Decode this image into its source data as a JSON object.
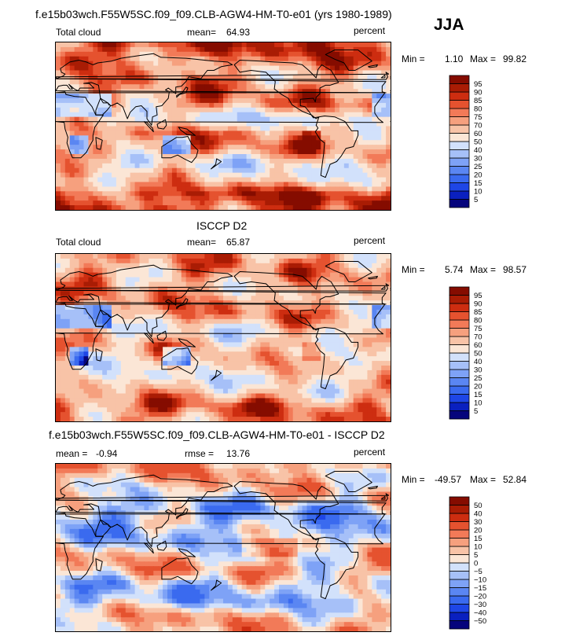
{
  "figure": {
    "title": "f.e15b03wch.F55W5SC.f09_f09.CLB-AGW4-HM-T0-e01 (yrs 1980-1989)",
    "season": "JJA"
  },
  "chart_data": [
    {
      "type": "heatmap",
      "panel": "model",
      "variable": "Total cloud",
      "mean_label": "mean=",
      "mean": "64.93",
      "units": "percent",
      "min_label": "Min =",
      "min": "1.10",
      "max_label": "Max =",
      "max": "99.82",
      "levels": [
        5,
        10,
        15,
        20,
        25,
        30,
        40,
        50,
        60,
        70,
        75,
        80,
        85,
        90,
        95
      ],
      "level_labels": [
        "5",
        "10",
        "15",
        "20",
        "25",
        "30",
        "40",
        "50",
        "60",
        "70",
        "75",
        "80",
        "85",
        "90",
        "95"
      ],
      "band_means": [
        88,
        80,
        70,
        72,
        76,
        50,
        74,
        74,
        52,
        60,
        88,
        84
      ]
    },
    {
      "type": "heatmap",
      "panel": "observations",
      "title": "ISCCP D2",
      "variable": "Total cloud",
      "mean_label": "mean=",
      "mean": "65.87",
      "units": "percent",
      "min_label": "Min =",
      "min": "5.74",
      "max_label": "Max =",
      "max": "98.57",
      "levels": [
        5,
        10,
        15,
        20,
        25,
        30,
        40,
        50,
        60,
        70,
        75,
        80,
        85,
        90,
        95
      ],
      "level_labels": [
        "5",
        "10",
        "15",
        "20",
        "25",
        "30",
        "40",
        "50",
        "60",
        "70",
        "75",
        "80",
        "85",
        "90",
        "95"
      ],
      "band_means": [
        70,
        72,
        68,
        70,
        72,
        56,
        66,
        62,
        56,
        62,
        80,
        74
      ]
    },
    {
      "type": "heatmap",
      "panel": "difference",
      "title": "f.e15b03wch.F55W5SC.f09_f09.CLB-AGW4-HM-T0-e01 - ISCCP D2",
      "mean_label": "mean =",
      "mean": "-0.94",
      "rmse_label": "rmse =",
      "rmse": "13.76",
      "units": "percent",
      "min_label": "Min =",
      "min": "-49.57",
      "max_label": "Max =",
      "max": "52.84",
      "levels": [
        -50,
        -40,
        -30,
        -20,
        -15,
        -10,
        -5,
        0,
        5,
        10,
        15,
        20,
        30,
        40,
        50
      ],
      "level_labels": [
        "−50",
        "−40",
        "−30",
        "−20",
        "−15",
        "−10",
        "−5",
        "0",
        "5",
        "10",
        "15",
        "20",
        "30",
        "40",
        "50"
      ],
      "band_means": [
        14,
        8,
        4,
        -10,
        -8,
        -6,
        6,
        10,
        -6,
        -8,
        8,
        10
      ]
    }
  ],
  "colors": {
    "cloud_scale": [
      "#05047c",
      "#0a20bf",
      "#1e46e6",
      "#3a6aef",
      "#5a86f2",
      "#7ea2f6",
      "#a6c0f8",
      "#d2e1fb",
      "#fbe6d6",
      "#f8c3a7",
      "#f6a07e",
      "#f27a58",
      "#e5522f",
      "#cd2d10",
      "#a91c04",
      "#850c00"
    ],
    "diff_scale": [
      "#05047c",
      "#0a20bf",
      "#1e46e6",
      "#3a6aef",
      "#5a86f2",
      "#7ea2f6",
      "#a6c0f8",
      "#d2e1fb",
      "#fbe6d6",
      "#f8c3a7",
      "#f6a07e",
      "#f27a58",
      "#e5522f",
      "#cd2d10",
      "#a91c04",
      "#850c00"
    ]
  }
}
